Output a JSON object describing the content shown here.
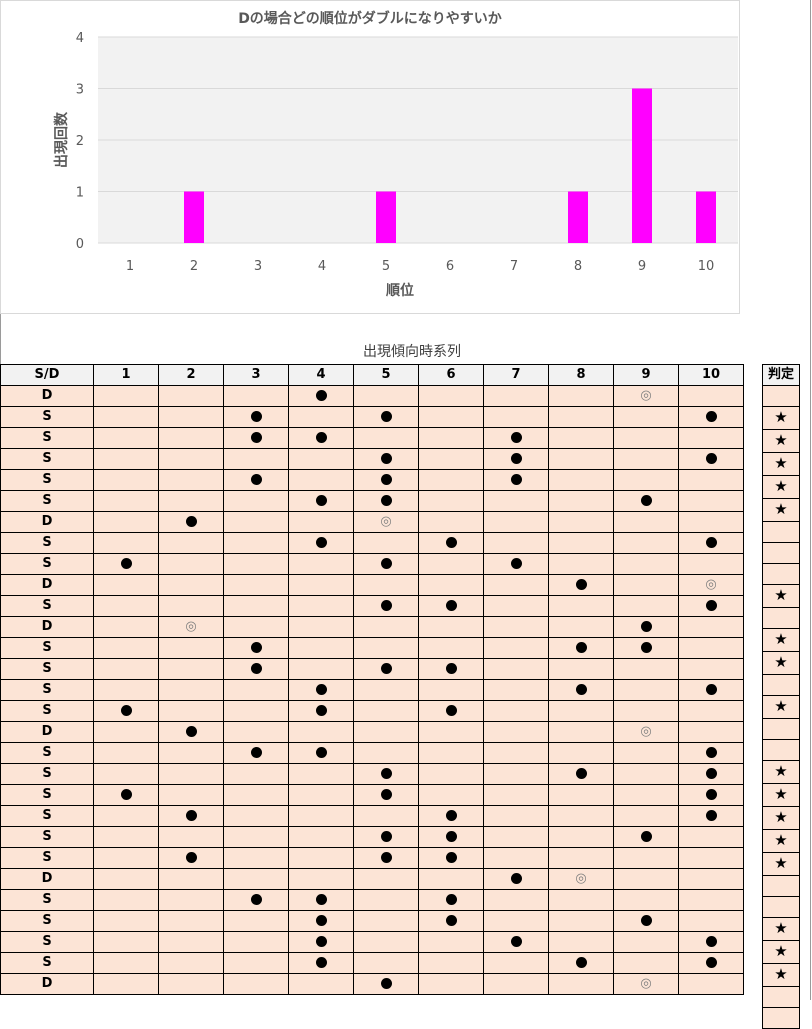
{
  "chart_data": {
    "type": "bar",
    "title": "Dの場合どの順位がダブルになりやすいか",
    "xlabel": "順位",
    "ylabel": "出現回数",
    "categories": [
      "1",
      "2",
      "3",
      "4",
      "5",
      "6",
      "7",
      "8",
      "9",
      "10"
    ],
    "values": [
      0,
      1,
      0,
      0,
      1,
      0,
      0,
      1,
      3,
      1
    ],
    "ylim": [
      0,
      4
    ],
    "yticks": [
      "0",
      "1",
      "2",
      "3",
      "4"
    ],
    "bar_color": "#ff00ff",
    "plot_bg": "#f2f2f2",
    "grid": true
  },
  "table": {
    "title": "出現傾向時系列",
    "sd_header": "S/D",
    "columns": [
      "1",
      "2",
      "3",
      "4",
      "5",
      "6",
      "7",
      "8",
      "9",
      "10"
    ],
    "judge_header": "判定",
    "symbols": {
      "dot": "●",
      "double": "◎",
      "star": "★"
    },
    "rows": [
      {
        "sd": "D",
        "dots": [
          4
        ],
        "double": [
          9
        ],
        "star": false
      },
      {
        "sd": "S",
        "dots": [
          3,
          5,
          10
        ],
        "double": [],
        "star": true
      },
      {
        "sd": "S",
        "dots": [
          3,
          4,
          7
        ],
        "double": [],
        "star": true
      },
      {
        "sd": "S",
        "dots": [
          5,
          7,
          10
        ],
        "double": [],
        "star": true
      },
      {
        "sd": "S",
        "dots": [
          3,
          5,
          7
        ],
        "double": [],
        "star": true
      },
      {
        "sd": "S",
        "dots": [
          4,
          5,
          9
        ],
        "double": [],
        "star": true
      },
      {
        "sd": "D",
        "dots": [
          2
        ],
        "double": [
          5
        ],
        "star": false
      },
      {
        "sd": "S",
        "dots": [
          4,
          6,
          10
        ],
        "double": [],
        "star": false
      },
      {
        "sd": "S",
        "dots": [
          1,
          5,
          7
        ],
        "double": [],
        "star": false
      },
      {
        "sd": "D",
        "dots": [
          8
        ],
        "double": [
          10
        ],
        "star": true
      },
      {
        "sd": "S",
        "dots": [
          5,
          6,
          10
        ],
        "double": [],
        "star": false
      },
      {
        "sd": "D",
        "dots": [
          9
        ],
        "double": [
          2
        ],
        "star": true
      },
      {
        "sd": "S",
        "dots": [
          3,
          8,
          9
        ],
        "double": [],
        "star": true
      },
      {
        "sd": "S",
        "dots": [
          3,
          5,
          6
        ],
        "double": [],
        "star": false
      },
      {
        "sd": "S",
        "dots": [
          4,
          8,
          10
        ],
        "double": [],
        "star": true
      },
      {
        "sd": "S",
        "dots": [
          1,
          4,
          6
        ],
        "double": [],
        "star": false
      },
      {
        "sd": "D",
        "dots": [
          2
        ],
        "double": [
          9
        ],
        "star": false
      },
      {
        "sd": "S",
        "dots": [
          3,
          4,
          10
        ],
        "double": [],
        "star": true
      },
      {
        "sd": "S",
        "dots": [
          5,
          8,
          10
        ],
        "double": [],
        "star": true
      },
      {
        "sd": "S",
        "dots": [
          1,
          5,
          10
        ],
        "double": [],
        "star": true
      },
      {
        "sd": "S",
        "dots": [
          2,
          6,
          10
        ],
        "double": [],
        "star": true
      },
      {
        "sd": "S",
        "dots": [
          5,
          6,
          9
        ],
        "double": [],
        "star": true
      },
      {
        "sd": "S",
        "dots": [
          2,
          5,
          6
        ],
        "double": [],
        "star": false
      },
      {
        "sd": "D",
        "dots": [
          7
        ],
        "double": [
          8
        ],
        "star": false
      },
      {
        "sd": "S",
        "dots": [
          3,
          4,
          6
        ],
        "double": [],
        "star": true
      },
      {
        "sd": "S",
        "dots": [
          4,
          6,
          9
        ],
        "double": [],
        "star": true
      },
      {
        "sd": "S",
        "dots": [
          4,
          7,
          10
        ],
        "double": [],
        "star": true
      },
      {
        "sd": "S",
        "dots": [
          4,
          8,
          10
        ],
        "double": [],
        "star": false
      },
      {
        "sd": "D",
        "dots": [
          5
        ],
        "double": [
          9
        ],
        "star": false
      }
    ]
  }
}
